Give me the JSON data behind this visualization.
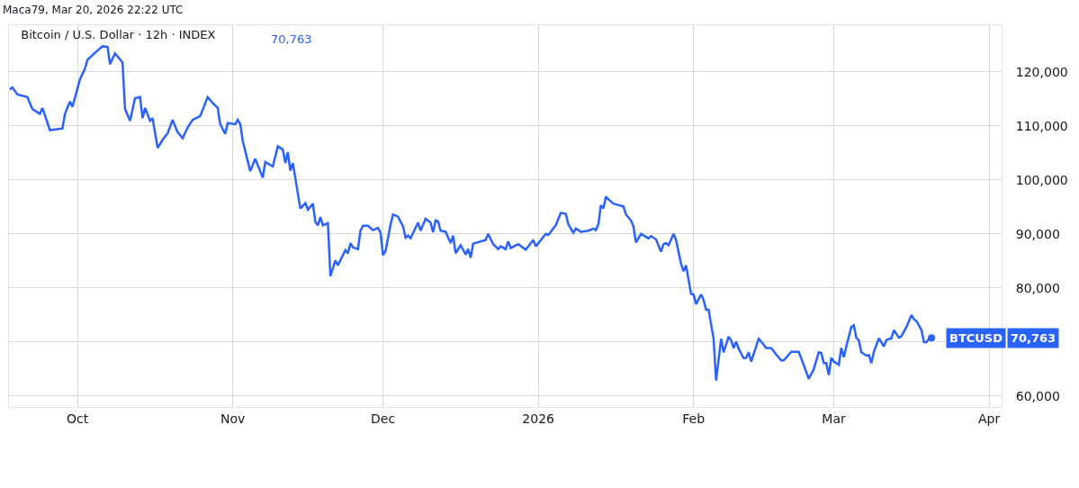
{
  "chart_data": {
    "type": "line",
    "title": "Bitcoin / U.S. Dollar · 12h · INDEX",
    "annotations": [
      "Maca79, Mar 20, 2026 22:22 UTC",
      "70,763",
      "70,763"
    ],
    "x": [
      "2025-09-17T12:00",
      "2025-09-18",
      "2025-09-19",
      "2025-09-21",
      "2025-09-22",
      "2025-09-23T12:00",
      "2025-09-24",
      "2025-09-25T12:00",
      "2025-09-28",
      "2025-09-28T12:00",
      "2025-09-29T12:00",
      "2025-09-30",
      "2025-10-01T12:00",
      "2025-10-02T12:00",
      "2025-10-03",
      "2025-10-04T12:00",
      "2025-10-06",
      "2025-10-07",
      "2025-10-07T12:00",
      "2025-10-08T12:00",
      "2025-10-10",
      "2025-10-10T12:00",
      "2025-10-11T12:00",
      "2025-10-12T12:00",
      "2025-10-13T12:00",
      "2025-10-14",
      "2025-10-14T12:00",
      "2025-10-15T12:00",
      "2025-10-16",
      "2025-10-17",
      "2025-10-18",
      "2025-10-19",
      "2025-10-20",
      "2025-10-21",
      "2025-10-22",
      "2025-10-23",
      "2025-10-24",
      "2025-10-25T12:00",
      "2025-10-27",
      "2025-10-28",
      "2025-10-29",
      "2025-10-29T12:00",
      "2025-10-30T12:00",
      "2025-10-31",
      "2025-11-01T12:00",
      "2025-11-02",
      "2025-11-02T12:00",
      "2025-11-03",
      "2025-11-04T12:00",
      "2025-11-05T12:00",
      "2025-11-07",
      "2025-11-07T12:00",
      "2025-11-09",
      "2025-11-10",
      "2025-11-11",
      "2025-11-11T12:00",
      "2025-11-12",
      "2025-11-12T12:00",
      "2025-11-13",
      "2025-11-14T12:00",
      "2025-11-15T12:00",
      "2025-11-16",
      "2025-11-17",
      "2025-11-17T12:00",
      "2025-11-18",
      "2025-11-18T12:00",
      "2025-11-19",
      "2025-11-20",
      "2025-11-20T12:00",
      "2025-11-21T12:00",
      "2025-11-22",
      "2025-11-23",
      "2025-11-23T12:00",
      "2025-11-24",
      "2025-11-24T12:00",
      "2025-11-25",
      "2025-11-26",
      "2025-11-26T12:00",
      "2025-11-27",
      "2025-11-28",
      "2025-11-29",
      "2025-11-30",
      "2025-11-30T12:00",
      "2025-12-01",
      "2025-12-01T12:00",
      "2025-12-02T12:00",
      "2025-12-03",
      "2025-12-04",
      "2025-12-05",
      "2025-12-05T12:00",
      "2025-12-06",
      "2025-12-06T12:00",
      "2025-12-08",
      "2025-12-08T12:00",
      "2025-12-09T12:00",
      "2025-12-10T12:00",
      "2025-12-11",
      "2025-12-11T12:00",
      "2025-12-12",
      "2025-12-12T12:00",
      "2025-12-13T12:00",
      "2025-12-14T12:00",
      "2025-12-15",
      "2025-12-15T12:00",
      "2025-12-16T12:00",
      "2025-12-17T12:00",
      "2025-12-18",
      "2025-12-18T12:00",
      "2025-12-19",
      "2025-12-21T12:00",
      "2025-12-22",
      "2025-12-23",
      "2025-12-24",
      "2025-12-24T12:00",
      "2025-12-25T12:00",
      "2025-12-26",
      "2025-12-26T12:00",
      "2025-12-28",
      "2025-12-29T12:00",
      "2025-12-31",
      "2025-12-31T12:00",
      "2026-01-02T12:00",
      "2026-01-03",
      "2026-01-04T12:00",
      "2026-01-05T12:00",
      "2026-01-06T12:00",
      "2026-01-07",
      "2026-01-08",
      "2026-01-08T12:00",
      "2026-01-09T12:00",
      "2026-01-11",
      "2026-01-12",
      "2026-01-12T12:00",
      "2026-01-13",
      "2026-01-13T12:00",
      "2026-01-14",
      "2026-01-14T12:00",
      "2026-01-15",
      "2026-01-16",
      "2026-01-18",
      "2026-01-18T12:00",
      "2026-01-19T12:00",
      "2026-01-20",
      "2026-01-20T12:00",
      "2026-01-21T12:00",
      "2026-01-23",
      "2026-01-23T12:00",
      "2026-01-24T12:00",
      "2026-01-25T12:00",
      "2026-01-26",
      "2026-01-26T12:00",
      "2026-01-27",
      "2026-01-28",
      "2026-01-28T12:00",
      "2026-01-29T12:00",
      "2026-01-30",
      "2026-01-30T12:00",
      "2026-01-31T12:00",
      "2026-02-01",
      "2026-02-01T12:00",
      "2026-02-02T12:00",
      "2026-02-03",
      "2026-02-03T12:00",
      "2026-02-04",
      "2026-02-05",
      "2026-02-05T12:00",
      "2026-02-06T12:00",
      "2026-02-07",
      "2026-02-08",
      "2026-02-08T12:00",
      "2026-02-09",
      "2026-02-09T12:00",
      "2026-02-10",
      "2026-02-11",
      "2026-02-11T12:00",
      "2026-02-12",
      "2026-02-12T12:00",
      "2026-02-14",
      "2026-02-14T12:00",
      "2026-02-15T12:00",
      "2026-02-16T12:00",
      "2026-02-17T12:00",
      "2026-02-18T12:00",
      "2026-02-19",
      "2026-02-20T12:00",
      "2026-02-22",
      "2026-02-22T12:00",
      "2026-02-24",
      "2026-02-25",
      "2026-02-26",
      "2026-02-26T12:00",
      "2026-02-27",
      "2026-02-27T12:00",
      "2026-02-28",
      "2026-02-28T12:00",
      "2026-03-01",
      "2026-03-02",
      "2026-03-02T12:00",
      "2026-03-03",
      "2026-03-03T12:00",
      "2026-03-04T12:00",
      "2026-03-05",
      "2026-03-05T12:00",
      "2026-03-06",
      "2026-03-06T12:00",
      "2026-03-07T12:00",
      "2026-03-08",
      "2026-03-08T12:00",
      "2026-03-09",
      "2026-03-10",
      "2026-03-11",
      "2026-03-11T12:00",
      "2026-03-12T12:00",
      "2026-03-13",
      "2026-03-14",
      "2026-03-14T12:00",
      "2026-03-15T12:00",
      "2026-03-16T12:00",
      "2026-03-17",
      "2026-03-17T12:00",
      "2026-03-18T12:00",
      "2026-03-19",
      "2026-03-19T12:00",
      "2026-03-20",
      "2026-03-20T12:00"
    ],
    "series": [
      {
        "name": "BTCUSD",
        "color": "#2962ff",
        "values": [
          116700,
          117100,
          115800,
          115300,
          113100,
          112200,
          113300,
          109200,
          109500,
          112200,
          114500,
          113500,
          118600,
          120600,
          122200,
          123500,
          124700,
          124600,
          121400,
          123400,
          121700,
          113100,
          110900,
          115100,
          115300,
          111400,
          113300,
          110900,
          111400,
          105900,
          107400,
          108600,
          111100,
          108800,
          107700,
          109700,
          111100,
          111800,
          115300,
          114200,
          113300,
          110300,
          108500,
          110500,
          110300,
          111100,
          110300,
          107200,
          101600,
          103900,
          100400,
          103300,
          102500,
          106200,
          105600,
          103100,
          105100,
          101700,
          103100,
          94700,
          95700,
          94500,
          95600,
          92200,
          91600,
          93100,
          91600,
          92000,
          82200,
          85100,
          84200,
          86100,
          87000,
          86400,
          88300,
          87500,
          87200,
          90600,
          91500,
          91500,
          90700,
          91100,
          90300,
          86100,
          86800,
          91700,
          93600,
          93200,
          91400,
          89300,
          89700,
          89200,
          92100,
          90600,
          92800,
          92100,
          90300,
          92500,
          92300,
          90600,
          90400,
          88300,
          89700,
          86400,
          87900,
          86200,
          87200,
          85600,
          88200,
          88900,
          90000,
          88100,
          87200,
          87700,
          87200,
          88600,
          87400,
          88100,
          87100,
          88900,
          87700,
          90000,
          89800,
          91600,
          93900,
          93700,
          91800,
          90200,
          91000,
          90400,
          90600,
          91000,
          90700,
          91800,
          95300,
          94700,
          96900,
          96400,
          95600,
          95100,
          93600,
          92500,
          91400,
          88400,
          90000,
          89200,
          89600,
          89000,
          86700,
          88100,
          88300,
          87900,
          90000,
          88900,
          84500,
          83100,
          84200,
          78900,
          78800,
          77000,
          78800,
          77800,
          76000,
          76000,
          70600,
          62900,
          70600,
          68100,
          71000,
          70300,
          68900,
          70100,
          68800,
          67000,
          67100,
          68100,
          66400,
          70600,
          70100,
          68900,
          68900,
          67700,
          66600,
          66600,
          68200,
          68200,
          67000,
          63200,
          65000,
          68100,
          68000,
          66100,
          66100,
          63900,
          67100,
          66400,
          65800,
          68900,
          67200,
          69200,
          72800,
          73100,
          70800,
          70300,
          68100,
          67500,
          67600,
          66100,
          68200,
          70700,
          69200,
          70400,
          70700,
          72200,
          70800,
          71100,
          72800,
          75000,
          74200,
          73900,
          72200,
          70000,
          70000,
          70600,
          70800
        ]
      }
    ],
    "xlim": [
      "2025-09-17T08:00",
      "2026-04-03T12:00"
    ],
    "xticks": [
      {
        "value": "2025-10-01",
        "label": "Oct"
      },
      {
        "value": "2025-11-01",
        "label": "Nov"
      },
      {
        "value": "2025-12-01",
        "label": "Dec"
      },
      {
        "value": "2026-01-01",
        "label": "2026"
      },
      {
        "value": "2026-02-01",
        "label": "Feb"
      },
      {
        "value": "2026-03-01",
        "label": "Mar"
      },
      {
        "value": "2026-04-01",
        "label": "Apr"
      }
    ],
    "ylim": [
      58000,
      128600
    ],
    "yticks": [
      {
        "value": 60000,
        "label": "60,000"
      },
      {
        "value": 70000,
        "label": null
      },
      {
        "value": 80000,
        "label": "80,000"
      },
      {
        "value": 90000,
        "label": "90,000"
      },
      {
        "value": 100000,
        "label": "100,000"
      },
      {
        "value": 110000,
        "label": "110,000"
      },
      {
        "value": 120000,
        "label": "120,000"
      }
    ],
    "grid": true,
    "legend": "right",
    "marker": "none",
    "line_style": "solid"
  }
}
